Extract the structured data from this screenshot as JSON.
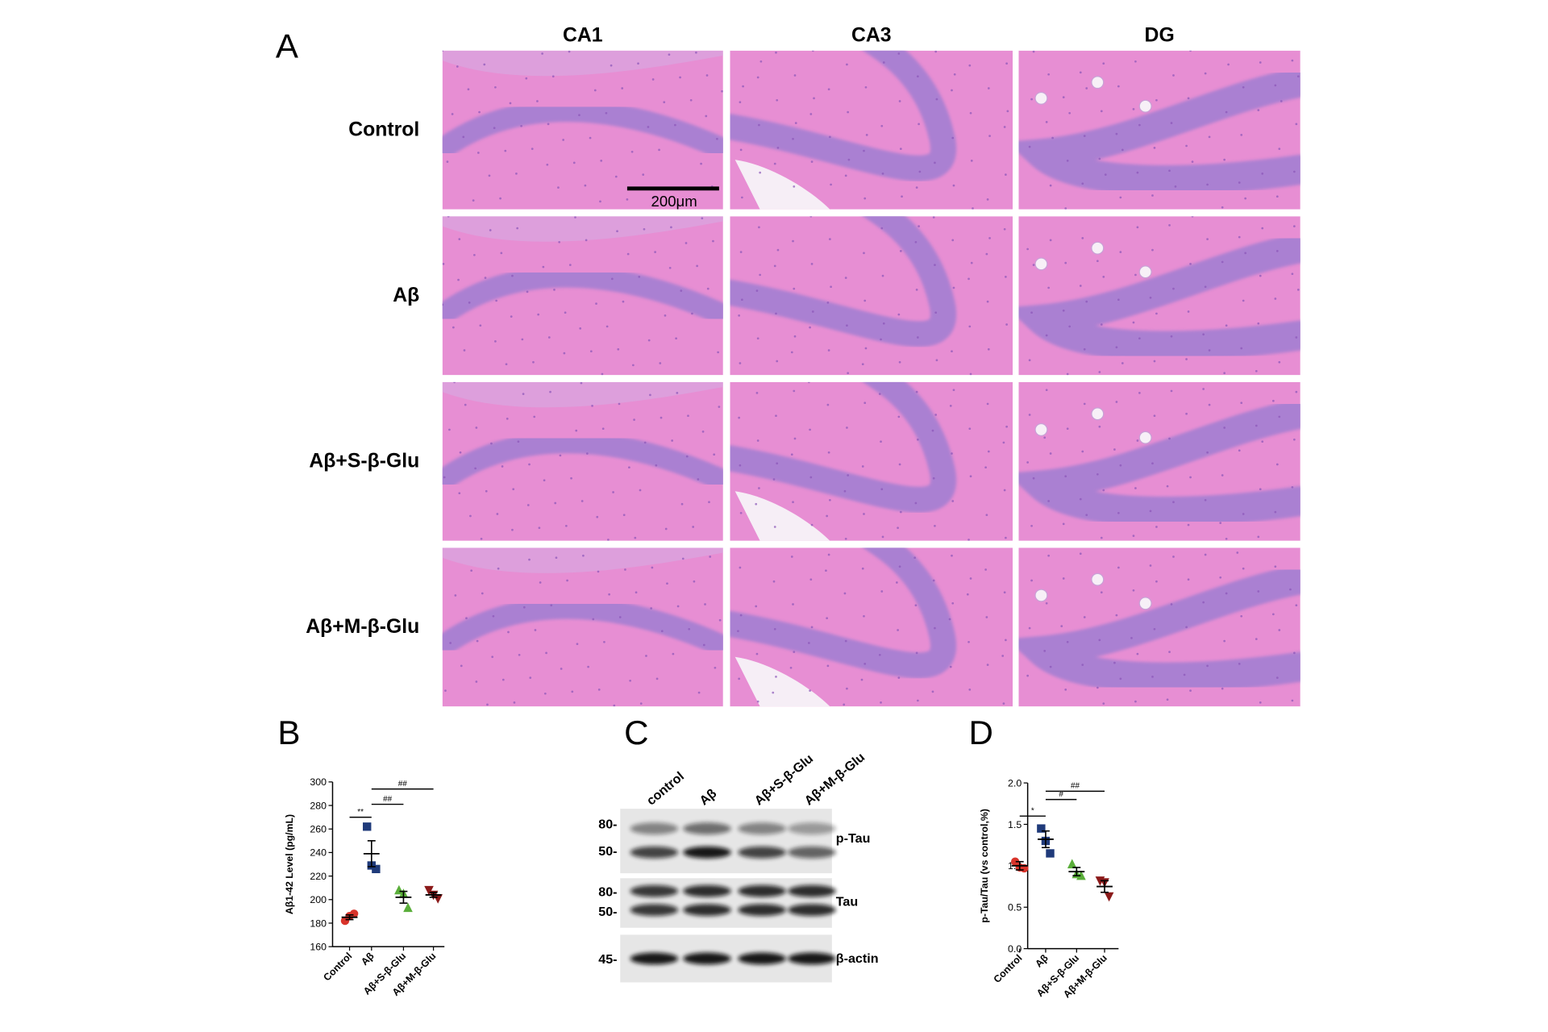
{
  "panel_a": {
    "label": "A",
    "columns": [
      "CA1",
      "CA3",
      "DG"
    ],
    "rows": [
      "Control",
      "Aβ",
      "Aβ+S-β-Glu",
      "Aβ+M-β-Glu"
    ],
    "scale_bar": "200μm"
  },
  "panel_c": {
    "label": "C",
    "lanes": [
      "control",
      "Aβ",
      "Aβ+S-β-Glu",
      "Aβ+M-β-Glu"
    ],
    "markers": [
      "80-",
      "50-",
      "80-",
      "50-",
      "45-"
    ],
    "blots": [
      "p-Tau",
      "Tau",
      "β-actin"
    ]
  },
  "chart_data": [
    {
      "type": "dot",
      "label": "B",
      "y_label": "Aβ1-42 Level (pg/mL)",
      "categories": [
        "Control",
        "Aβ",
        "Aβ+S-β-Glu",
        "Aβ+M-β-Glu"
      ],
      "colors": [
        "#d9342b",
        "#1f3a7a",
        "#5aae3a",
        "#8b1a1a"
      ],
      "markers": [
        "circle",
        "square",
        "triangle",
        "triangle-down"
      ],
      "points": [
        [
          182,
          186,
          188
        ],
        [
          262,
          229,
          226
        ],
        [
          208,
          205,
          193
        ],
        [
          208,
          204,
          201
        ]
      ],
      "means": [
        185,
        239,
        202,
        204
      ],
      "sems": [
        2,
        11,
        5,
        2
      ],
      "ylim": [
        160,
        300
      ],
      "yticks": [
        160,
        180,
        200,
        220,
        240,
        260,
        280,
        300
      ],
      "annotations": [
        {
          "text": "**",
          "from": "Control",
          "to": "Aβ",
          "y": 270
        },
        {
          "text": "##",
          "from": "Aβ",
          "to": "Aβ+S-β-Glu",
          "y": 281
        },
        {
          "text": "##",
          "from": "Aβ",
          "to": "Aβ+M-β-Glu",
          "y": 294
        }
      ]
    },
    {
      "type": "dot",
      "label": "D",
      "y_label": "p-Tau/Tau (vs control,%)",
      "categories": [
        "Control",
        "Aβ",
        "Aβ+S-β-Glu",
        "Aβ+M-β-Glu"
      ],
      "colors": [
        "#d9342b",
        "#1f3a7a",
        "#5aae3a",
        "#8b1a1a"
      ],
      "markers": [
        "circle",
        "square",
        "triangle",
        "triangle-down"
      ],
      "points": [
        [
          1.05,
          0.98,
          0.97
        ],
        [
          1.45,
          1.3,
          1.15
        ],
        [
          1.02,
          0.9,
          0.88
        ],
        [
          0.82,
          0.8,
          0.63
        ]
      ],
      "means": [
        1.0,
        1.32,
        0.93,
        0.75
      ],
      "sems": [
        0.05,
        0.1,
        0.05,
        0.07
      ],
      "ylim": [
        0,
        2
      ],
      "yticks": [
        {
          "value": 0,
          "label": "0.0"
        },
        {
          "value": 0.5,
          "label": "0.5"
        },
        {
          "value": 1,
          "label": "1.0"
        },
        {
          "value": 1.5,
          "label": "1.5"
        },
        {
          "value": 2,
          "label": "2.0"
        }
      ],
      "annotations": [
        {
          "text": "*",
          "from": "Control",
          "to": "Aβ",
          "y": 1.6
        },
        {
          "text": "#",
          "from": "Aβ",
          "to": "Aβ+S-β-Glu",
          "y": 1.8
        },
        {
          "text": "##",
          "from": "Aβ",
          "to": "Aβ+M-β-Glu",
          "y": 1.9
        }
      ]
    }
  ]
}
